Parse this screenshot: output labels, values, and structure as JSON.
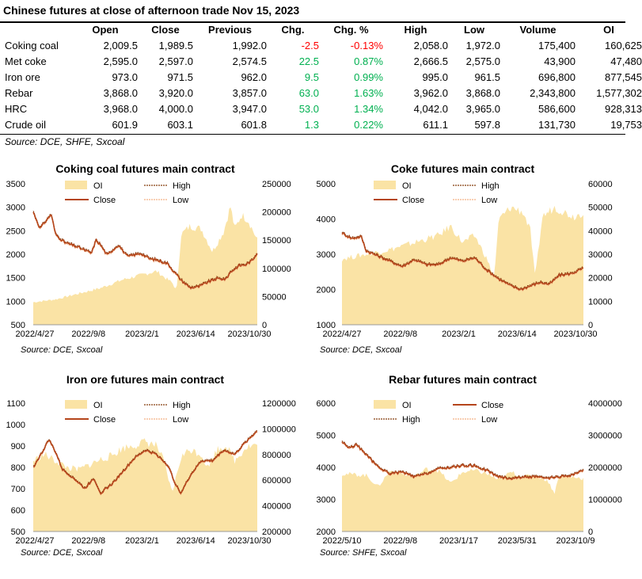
{
  "title": "Chinese futures at close of afternoon trade Nov 15, 2023",
  "table": {
    "headers": [
      "",
      "Open",
      "Close",
      "Previous",
      "Chg.",
      "Chg. %",
      "High",
      "Low",
      "Volume",
      "OI"
    ],
    "rows": [
      {
        "name": "Coking coal",
        "open": "2,009.5",
        "close": "1,989.5",
        "previous": "1,992.0",
        "chg": "-2.5",
        "chg_pct": "-0.13%",
        "high": "2,058.0",
        "low": "1,972.0",
        "volume": "175,400",
        "oi": "160,625",
        "dir": "neg"
      },
      {
        "name": "Met coke",
        "open": "2,595.0",
        "close": "2,597.0",
        "previous": "2,574.5",
        "chg": "22.5",
        "chg_pct": "0.87%",
        "high": "2,666.5",
        "low": "2,575.0",
        "volume": "43,900",
        "oi": "47,480",
        "dir": "pos"
      },
      {
        "name": "Iron ore",
        "open": "973.0",
        "close": "971.5",
        "previous": "962.0",
        "chg": "9.5",
        "chg_pct": "0.99%",
        "high": "995.0",
        "low": "961.5",
        "volume": "696,800",
        "oi": "877,545",
        "dir": "pos"
      },
      {
        "name": "Rebar",
        "open": "3,868.0",
        "close": "3,920.0",
        "previous": "3,857.0",
        "chg": "63.0",
        "chg_pct": "1.63%",
        "high": "3,962.0",
        "low": "3,868.0",
        "volume": "2,343,800",
        "oi": "1,577,302",
        "dir": "pos"
      },
      {
        "name": "HRC",
        "open": "3,968.0",
        "close": "4,000.0",
        "previous": "3,947.0",
        "chg": "53.0",
        "chg_pct": "1.34%",
        "high": "4,042.0",
        "low": "3,965.0",
        "volume": "586,600",
        "oi": "928,313",
        "dir": "pos"
      },
      {
        "name": "Crude oil",
        "open": "601.9",
        "close": "603.1",
        "previous": "601.8",
        "chg": "1.3",
        "chg_pct": "0.22%",
        "high": "611.1",
        "low": "597.8",
        "volume": "131,730",
        "oi": "19,753",
        "dir": "pos"
      }
    ]
  },
  "table_source": "Source: DCE, SHFE, Sxcoal",
  "colors": {
    "oi_fill": "#fae3a5",
    "close": "#b5451b",
    "high": "#843c0c",
    "low": "#f4b183",
    "neg": "#ff0000",
    "pos": "#00b050"
  },
  "chart_data": [
    {
      "type": "line",
      "title": "Coking coal futures main contract",
      "x_ticks": [
        "2022/4/27",
        "2022/9/8",
        "2023/2/1",
        "2023/6/14",
        "2023/10/30"
      ],
      "ylim": [
        500,
        3500
      ],
      "y_ticks": [
        500,
        1000,
        1500,
        2000,
        2500,
        3000,
        3500
      ],
      "y2lim": [
        0,
        250000
      ],
      "y2_ticks": [
        0,
        50000,
        100000,
        150000,
        200000,
        250000
      ],
      "legend": [
        "OI",
        "High",
        "Close",
        "Low"
      ],
      "source": "Source:  DCE, Sxcoal",
      "close": [
        [
          0,
          2900
        ],
        [
          0.03,
          2550
        ],
        [
          0.08,
          2850
        ],
        [
          0.1,
          2420
        ],
        [
          0.14,
          2250
        ],
        [
          0.2,
          2150
        ],
        [
          0.26,
          2020
        ],
        [
          0.28,
          2300
        ],
        [
          0.3,
          2200
        ],
        [
          0.33,
          1980
        ],
        [
          0.38,
          2200
        ],
        [
          0.42,
          1950
        ],
        [
          0.48,
          2020
        ],
        [
          0.52,
          1900
        ],
        [
          0.55,
          1880
        ],
        [
          0.6,
          1800
        ],
        [
          0.63,
          1620
        ],
        [
          0.66,
          1450
        ],
        [
          0.7,
          1290
        ],
        [
          0.74,
          1310
        ],
        [
          0.78,
          1410
        ],
        [
          0.82,
          1480
        ],
        [
          0.86,
          1470
        ],
        [
          0.88,
          1620
        ],
        [
          0.92,
          1760
        ],
        [
          0.95,
          1780
        ],
        [
          0.98,
          1880
        ],
        [
          1.0,
          2040
        ]
      ],
      "oi": [
        [
          0,
          40000
        ],
        [
          0.1,
          45000
        ],
        [
          0.2,
          55000
        ],
        [
          0.3,
          65000
        ],
        [
          0.4,
          80000
        ],
        [
          0.5,
          90000
        ],
        [
          0.55,
          95000
        ],
        [
          0.6,
          80000
        ],
        [
          0.62,
          75000
        ],
        [
          0.64,
          60000
        ],
        [
          0.66,
          160000
        ],
        [
          0.7,
          175000
        ],
        [
          0.75,
          170000
        ],
        [
          0.8,
          130000
        ],
        [
          0.85,
          165000
        ],
        [
          0.88,
          210000
        ],
        [
          0.9,
          170000
        ],
        [
          0.93,
          195000
        ],
        [
          0.96,
          185000
        ],
        [
          1.0,
          150000
        ]
      ]
    },
    {
      "type": "line",
      "title": "Coke futures main contract",
      "x_ticks": [
        "2022/4/27",
        "2022/9/8",
        "2023/2/1",
        "2023/6/14",
        "2023/10/30"
      ],
      "ylim": [
        1000,
        5000
      ],
      "y_ticks": [
        1000,
        2000,
        3000,
        4000,
        5000
      ],
      "y2lim": [
        0,
        60000
      ],
      "y2_ticks": [
        0,
        10000,
        20000,
        30000,
        40000,
        50000,
        60000
      ],
      "legend": [
        "OI",
        "High",
        "Close",
        "Low"
      ],
      "source": "Source:  DCE, Sxcoal",
      "close": [
        [
          0,
          3600
        ],
        [
          0.04,
          3450
        ],
        [
          0.08,
          3500
        ],
        [
          0.1,
          3100
        ],
        [
          0.15,
          2950
        ],
        [
          0.2,
          2800
        ],
        [
          0.25,
          2650
        ],
        [
          0.3,
          2850
        ],
        [
          0.35,
          2700
        ],
        [
          0.4,
          2700
        ],
        [
          0.45,
          2900
        ],
        [
          0.5,
          2800
        ],
        [
          0.55,
          2900
        ],
        [
          0.6,
          2550
        ],
        [
          0.65,
          2300
        ],
        [
          0.7,
          2100
        ],
        [
          0.74,
          2000
        ],
        [
          0.78,
          2100
        ],
        [
          0.82,
          2200
        ],
        [
          0.86,
          2150
        ],
        [
          0.9,
          2400
        ],
        [
          0.95,
          2450
        ],
        [
          1.0,
          2600
        ]
      ],
      "oi": [
        [
          0,
          28000
        ],
        [
          0.1,
          30000
        ],
        [
          0.2,
          32000
        ],
        [
          0.3,
          35000
        ],
        [
          0.4,
          38000
        ],
        [
          0.45,
          42000
        ],
        [
          0.5,
          35000
        ],
        [
          0.55,
          38000
        ],
        [
          0.6,
          28000
        ],
        [
          0.63,
          20000
        ],
        [
          0.65,
          45000
        ],
        [
          0.7,
          50000
        ],
        [
          0.75,
          48000
        ],
        [
          0.78,
          40000
        ],
        [
          0.8,
          20000
        ],
        [
          0.83,
          46000
        ],
        [
          0.88,
          50000
        ],
        [
          0.92,
          48000
        ],
        [
          0.96,
          46000
        ],
        [
          1.0,
          48000
        ]
      ]
    },
    {
      "type": "line",
      "title": "Iron ore futures main contract",
      "x_ticks": [
        "2022/4/27",
        "2022/9/8",
        "2023/2/1",
        "2023/6/14",
        "2023/10/30"
      ],
      "ylim": [
        500,
        1100
      ],
      "y_ticks": [
        500,
        600,
        700,
        800,
        900,
        1000,
        1100
      ],
      "y2lim": [
        200000,
        1200000
      ],
      "y2_ticks": [
        200000,
        400000,
        600000,
        800000,
        1000000,
        1200000
      ],
      "legend": [
        "OI",
        "High",
        "Close",
        "Low"
      ],
      "source": "Source:  DCE, Sxcoal",
      "close": [
        [
          0,
          800
        ],
        [
          0.04,
          870
        ],
        [
          0.07,
          930
        ],
        [
          0.1,
          870
        ],
        [
          0.13,
          790
        ],
        [
          0.18,
          750
        ],
        [
          0.23,
          700
        ],
        [
          0.27,
          750
        ],
        [
          0.3,
          680
        ],
        [
          0.35,
          720
        ],
        [
          0.4,
          780
        ],
        [
          0.45,
          840
        ],
        [
          0.5,
          880
        ],
        [
          0.55,
          860
        ],
        [
          0.6,
          810
        ],
        [
          0.64,
          710
        ],
        [
          0.66,
          680
        ],
        [
          0.7,
          760
        ],
        [
          0.75,
          830
        ],
        [
          0.8,
          830
        ],
        [
          0.85,
          880
        ],
        [
          0.9,
          860
        ],
        [
          0.95,
          920
        ],
        [
          1.0,
          970
        ]
      ],
      "oi": [
        [
          0,
          750000
        ],
        [
          0.05,
          800000
        ],
        [
          0.1,
          750000
        ],
        [
          0.15,
          700000
        ],
        [
          0.2,
          680000
        ],
        [
          0.25,
          720000
        ],
        [
          0.3,
          760000
        ],
        [
          0.35,
          790000
        ],
        [
          0.4,
          850000
        ],
        [
          0.45,
          870000
        ],
        [
          0.5,
          900000
        ],
        [
          0.55,
          870000
        ],
        [
          0.58,
          760000
        ],
        [
          0.62,
          500000
        ],
        [
          0.66,
          780000
        ],
        [
          0.7,
          840000
        ],
        [
          0.75,
          800000
        ],
        [
          0.78,
          700000
        ],
        [
          0.82,
          840000
        ],
        [
          0.86,
          870000
        ],
        [
          0.9,
          750000
        ],
        [
          0.95,
          860000
        ],
        [
          1.0,
          880000
        ]
      ]
    },
    {
      "type": "line",
      "title": "Rebar futures main contract",
      "x_ticks": [
        "2022/5/10",
        "2022/9/8",
        "2023/1/17",
        "2023/5/31",
        "2023/10/9"
      ],
      "ylim": [
        2000,
        6000
      ],
      "y_ticks": [
        2000,
        3000,
        4000,
        5000,
        6000
      ],
      "y2lim": [
        0,
        4000000
      ],
      "y2_ticks": [
        0,
        1000000,
        2000000,
        3000000,
        4000000
      ],
      "legend": [
        "OI",
        "Close",
        "High",
        "Low"
      ],
      "source": "Source:  SHFE, Sxcoal",
      "close": [
        [
          0,
          4800
        ],
        [
          0.03,
          4600
        ],
        [
          0.06,
          4700
        ],
        [
          0.1,
          4400
        ],
        [
          0.15,
          4000
        ],
        [
          0.2,
          3800
        ],
        [
          0.25,
          3850
        ],
        [
          0.3,
          3700
        ],
        [
          0.35,
          3800
        ],
        [
          0.4,
          3950
        ],
        [
          0.45,
          4000
        ],
        [
          0.5,
          4050
        ],
        [
          0.55,
          4050
        ],
        [
          0.6,
          3900
        ],
        [
          0.65,
          3700
        ],
        [
          0.7,
          3650
        ],
        [
          0.75,
          3700
        ],
        [
          0.8,
          3700
        ],
        [
          0.85,
          3650
        ],
        [
          0.9,
          3700
        ],
        [
          0.95,
          3750
        ],
        [
          1.0,
          3900
        ]
      ],
      "oi": [
        [
          0,
          1800000
        ],
        [
          0.1,
          1750000
        ],
        [
          0.15,
          1400000
        ],
        [
          0.2,
          1900000
        ],
        [
          0.25,
          1800000
        ],
        [
          0.3,
          1700000
        ],
        [
          0.35,
          1950000
        ],
        [
          0.4,
          1900000
        ],
        [
          0.45,
          1500000
        ],
        [
          0.5,
          1850000
        ],
        [
          0.55,
          1900000
        ],
        [
          0.6,
          1800000
        ],
        [
          0.65,
          1600000
        ],
        [
          0.7,
          1850000
        ],
        [
          0.75,
          1700000
        ],
        [
          0.8,
          1750000
        ],
        [
          0.85,
          1600000
        ],
        [
          0.88,
          1200000
        ],
        [
          0.9,
          1750000
        ],
        [
          0.95,
          1700000
        ],
        [
          1.0,
          1650000
        ]
      ]
    }
  ]
}
